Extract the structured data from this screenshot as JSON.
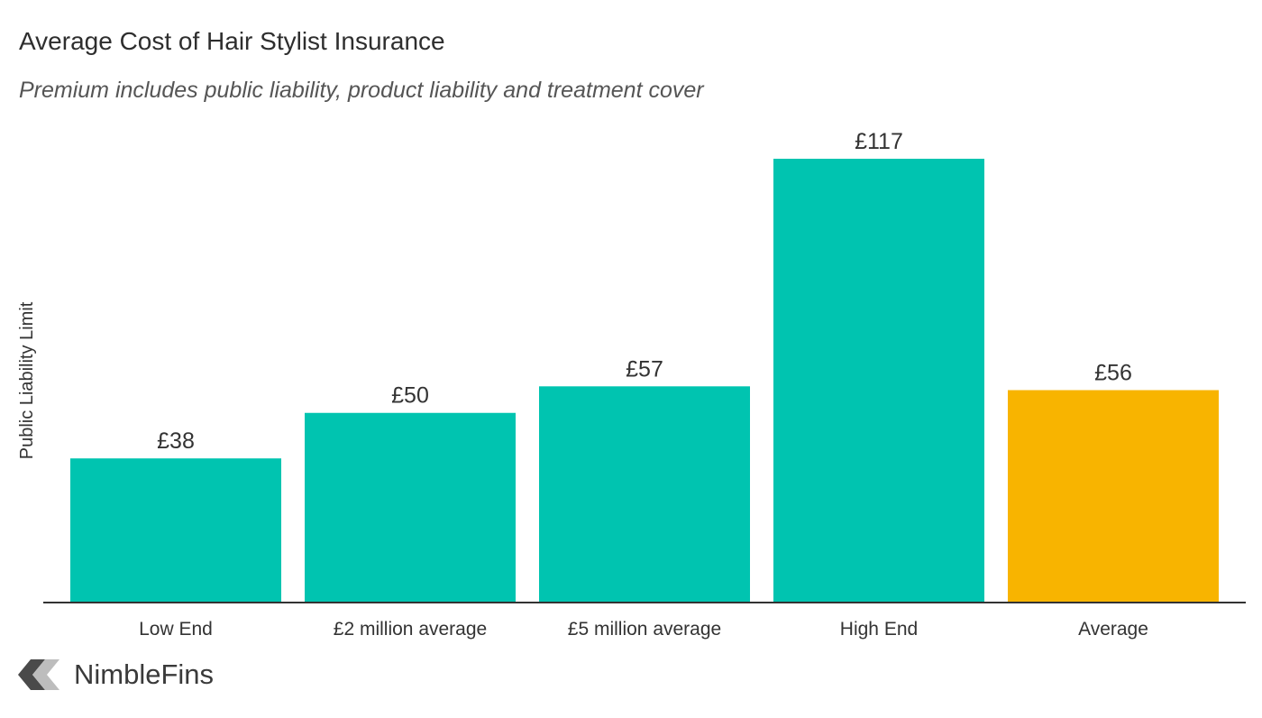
{
  "brand": {
    "name": "NimbleFins",
    "logo_icon": "nimblefins-chevron-logo"
  },
  "colors": {
    "primary_bar": "#00c4b0",
    "highlight_bar": "#f8b400",
    "axis": "#333333",
    "label": "#333333"
  },
  "chart_data": {
    "type": "bar",
    "title": "Average Cost of Hair Stylist Insurance",
    "subtitle": "Premium includes public liability, product liability and treatment cover",
    "xlabel": "",
    "ylabel": "Public Liability Limit",
    "grid": false,
    "ylim": [
      0,
      120
    ],
    "categories": [
      "Low End",
      "£2 million average",
      "£5 million average",
      "High End",
      "Average"
    ],
    "values": [
      38,
      50,
      57,
      117,
      56
    ],
    "value_labels": [
      "£38",
      "£50",
      "£57",
      "£117",
      "£56"
    ],
    "highlight_index": 4
  }
}
